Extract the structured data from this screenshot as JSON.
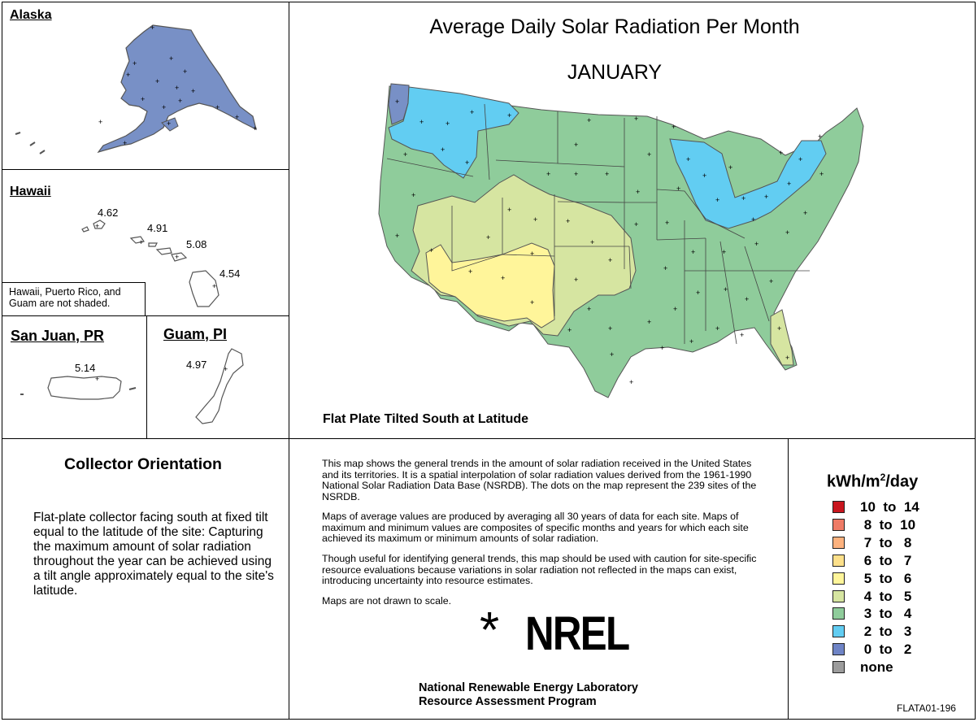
{
  "alaska": {
    "label": "Alaska"
  },
  "hawaii": {
    "label": "Hawaii",
    "values": [
      "4.62",
      "4.91",
      "5.08",
      "4.54"
    ],
    "note": "Hawaii, Puerto Rico, and Guam are not shaded."
  },
  "sanjuan": {
    "label": "San Juan, PR",
    "value": "5.14"
  },
  "guam": {
    "label": "Guam, PI",
    "value": "4.97"
  },
  "main_map": {
    "title": "Average Daily Solar Radiation Per Month",
    "month": "JANUARY",
    "subtitle": "Flat Plate Tilted South at Latitude"
  },
  "collector": {
    "heading": "Collector Orientation",
    "text": "Flat-plate collector facing south at fixed tilt equal to the latitude of the site:  Capturing the maximum amount of solar radiation throughout the year can be achieved using a tilt angle approximately equal to the site's latitude."
  },
  "description": {
    "p1": "This map shows the general trends in the amount of solar radiation received in the United States and its territories.  It is a spatial interpolation of solar radiation values derived from the 1961-1990 National Solar Radiation Data Base (NSRDB).  The dots on the map represent the 239 sites of the NSRDB.",
    "p2": "Maps of average values are produced by averaging all 30 years of data for each site. Maps of maximum and minimum values are composites of specific months and years for which each site achieved its maximum or minimum amounts of solar radiation.",
    "p3": "Though useful for identifying general trends, this map should be used with caution for site-specific resource evaluations because variations in solar radiation not reflected in the maps can exist, introducing uncertainty into resource estimates.",
    "p4": "Maps are not drawn to scale."
  },
  "logo": {
    "symbol": "*",
    "text": "NREL"
  },
  "footer": {
    "line1": "National Renewable Energy Laboratory",
    "line2": "Resource Assessment Program",
    "code": "FLATA01-196"
  },
  "legend": {
    "unit_prefix": "kWh/m",
    "unit_sup": "2",
    "unit_suffix": "/day",
    "items": [
      {
        "label": "10  to  14",
        "color": "#c8161e"
      },
      {
        "label": " 8  to  10",
        "color": "#ef7b66"
      },
      {
        "label": " 7  to   8",
        "color": "#fdb27e"
      },
      {
        "label": " 6  to   7",
        "color": "#fde08a"
      },
      {
        "label": " 5  to   6",
        "color": "#fff59a"
      },
      {
        "label": " 4  to   5",
        "color": "#d6e5a1"
      },
      {
        "label": " 3  to   4",
        "color": "#8fcc9b"
      },
      {
        "label": " 2  to   3",
        "color": "#62cdf2"
      },
      {
        "label": " 0  to   2",
        "color": "#6f84c6"
      },
      {
        "label": "none",
        "color": "#9c9c9c"
      }
    ]
  }
}
